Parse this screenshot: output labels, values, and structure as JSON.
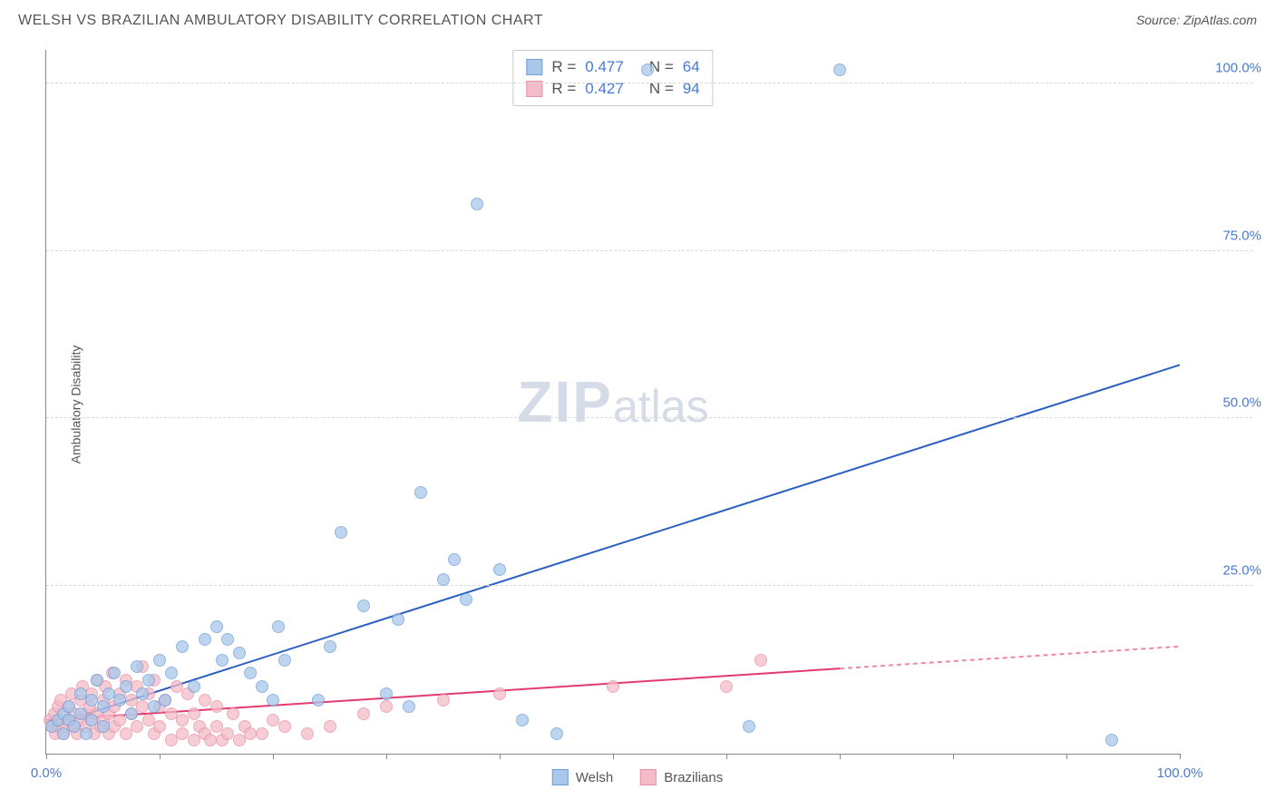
{
  "title": "WELSH VS BRAZILIAN AMBULATORY DISABILITY CORRELATION CHART",
  "source": "Source: ZipAtlas.com",
  "ylabel": "Ambulatory Disability",
  "watermark_main": "ZIP",
  "watermark_sub": "atlas",
  "chart": {
    "type": "scatter",
    "xlim": [
      0,
      100
    ],
    "ylim": [
      0,
      105
    ],
    "ytick_values": [
      25,
      50,
      75,
      100
    ],
    "ytick_labels": [
      "25.0%",
      "50.0%",
      "75.0%",
      "100.0%"
    ],
    "xtick_values": [
      0,
      10,
      20,
      30,
      40,
      50,
      60,
      70,
      80,
      90,
      100
    ],
    "xtick_labels_shown": {
      "0": "0.0%",
      "100": "100.0%"
    },
    "background_color": "#ffffff",
    "grid_color": "#d8d8d8",
    "axis_color": "#888888",
    "marker_radius": 7,
    "marker_border_width": 1,
    "series": [
      {
        "name": "Welsh",
        "fill_color": "#a9c7ea",
        "border_color": "#6f9fd8",
        "fill_opacity": 0.75,
        "R": "0.477",
        "N": "64",
        "trend": {
          "x1": 0,
          "y1": 4,
          "x2": 100,
          "y2": 58,
          "color": "#2b5fc1",
          "width": 2,
          "solid_until_x": 100
        },
        "points": [
          [
            0.5,
            4
          ],
          [
            1,
            5
          ],
          [
            1.5,
            3
          ],
          [
            1.5,
            6
          ],
          [
            2,
            5
          ],
          [
            2,
            7
          ],
          [
            2.5,
            4
          ],
          [
            3,
            6
          ],
          [
            3,
            9
          ],
          [
            3.5,
            3
          ],
          [
            4,
            8
          ],
          [
            4,
            5
          ],
          [
            4.5,
            11
          ],
          [
            5,
            7
          ],
          [
            5,
            4
          ],
          [
            5.5,
            9
          ],
          [
            6,
            12
          ],
          [
            6.5,
            8
          ],
          [
            7,
            10
          ],
          [
            7.5,
            6
          ],
          [
            8,
            13
          ],
          [
            8.5,
            9
          ],
          [
            9,
            11
          ],
          [
            9.5,
            7
          ],
          [
            10,
            14
          ],
          [
            10.5,
            8
          ],
          [
            11,
            12
          ],
          [
            12,
            16
          ],
          [
            13,
            10
          ],
          [
            14,
            17
          ],
          [
            15,
            19
          ],
          [
            15.5,
            14
          ],
          [
            16,
            17
          ],
          [
            17,
            15
          ],
          [
            18,
            12
          ],
          [
            19,
            10
          ],
          [
            20,
            8
          ],
          [
            20.5,
            19
          ],
          [
            21,
            14
          ],
          [
            24,
            8
          ],
          [
            25,
            16
          ],
          [
            26,
            33
          ],
          [
            28,
            22
          ],
          [
            30,
            9
          ],
          [
            31,
            20
          ],
          [
            32,
            7
          ],
          [
            33,
            39
          ],
          [
            35,
            26
          ],
          [
            36,
            29
          ],
          [
            37,
            23
          ],
          [
            38,
            82
          ],
          [
            40,
            27.5
          ],
          [
            42,
            5
          ],
          [
            45,
            3
          ],
          [
            53,
            102
          ],
          [
            62,
            4
          ],
          [
            70,
            102
          ],
          [
            94,
            2
          ]
        ]
      },
      {
        "name": "Brazilians",
        "fill_color": "#f4bcc8",
        "border_color": "#e98fa6",
        "fill_opacity": 0.75,
        "R": "0.427",
        "N": "94",
        "trend": {
          "x1": 0,
          "y1": 5,
          "x2": 100,
          "y2": 16,
          "color": "#e23a6e",
          "width": 2,
          "solid_until_x": 70
        },
        "points": [
          [
            0.3,
            5
          ],
          [
            0.5,
            4
          ],
          [
            0.7,
            6
          ],
          [
            0.8,
            3
          ],
          [
            1,
            7
          ],
          [
            1,
            4
          ],
          [
            1.2,
            5
          ],
          [
            1.3,
            8
          ],
          [
            1.5,
            3
          ],
          [
            1.5,
            6
          ],
          [
            1.7,
            4
          ],
          [
            2,
            7
          ],
          [
            2,
            5
          ],
          [
            2.2,
            9
          ],
          [
            2.4,
            4
          ],
          [
            2.5,
            6
          ],
          [
            2.7,
            3
          ],
          [
            3,
            8
          ],
          [
            3,
            5
          ],
          [
            3.2,
            10
          ],
          [
            3.5,
            6
          ],
          [
            3.5,
            4
          ],
          [
            3.8,
            7
          ],
          [
            4,
            9
          ],
          [
            4,
            5
          ],
          [
            4.2,
            3
          ],
          [
            4.5,
            11
          ],
          [
            4.5,
            6
          ],
          [
            4.8,
            4
          ],
          [
            5,
            8
          ],
          [
            5,
            5
          ],
          [
            5.2,
            10
          ],
          [
            5.5,
            6
          ],
          [
            5.5,
            3
          ],
          [
            5.8,
            12
          ],
          [
            6,
            7
          ],
          [
            6,
            4
          ],
          [
            6.5,
            9
          ],
          [
            6.5,
            5
          ],
          [
            7,
            11
          ],
          [
            7,
            3
          ],
          [
            7.5,
            8
          ],
          [
            7.5,
            6
          ],
          [
            8,
            10
          ],
          [
            8,
            4
          ],
          [
            8.5,
            7
          ],
          [
            8.5,
            13
          ],
          [
            9,
            5
          ],
          [
            9,
            9
          ],
          [
            9.5,
            3
          ],
          [
            9.5,
            11
          ],
          [
            10,
            7
          ],
          [
            10,
            4
          ],
          [
            10.5,
            8
          ],
          [
            11,
            6
          ],
          [
            11,
            2
          ],
          [
            11.5,
            10
          ],
          [
            12,
            5
          ],
          [
            12,
            3
          ],
          [
            12.5,
            9
          ],
          [
            13,
            6
          ],
          [
            13,
            2
          ],
          [
            13.5,
            4
          ],
          [
            14,
            8
          ],
          [
            14,
            3
          ],
          [
            14.5,
            2
          ],
          [
            15,
            7
          ],
          [
            15,
            4
          ],
          [
            15.5,
            2
          ],
          [
            16,
            3
          ],
          [
            16.5,
            6
          ],
          [
            17,
            2
          ],
          [
            17.5,
            4
          ],
          [
            18,
            3
          ],
          [
            19,
            3
          ],
          [
            20,
            5
          ],
          [
            21,
            4
          ],
          [
            23,
            3
          ],
          [
            25,
            4
          ],
          [
            28,
            6
          ],
          [
            30,
            7
          ],
          [
            35,
            8
          ],
          [
            40,
            9
          ],
          [
            50,
            10
          ],
          [
            60,
            10
          ],
          [
            63,
            14
          ]
        ]
      }
    ]
  },
  "legend": {
    "items": [
      {
        "label": "Welsh",
        "fill": "#a9c7ea",
        "border": "#6f9fd8"
      },
      {
        "label": "Brazilians",
        "fill": "#f4bcc8",
        "border": "#e98fa6"
      }
    ]
  },
  "stats_box": {
    "R_label": "R =",
    "N_label": "N ="
  }
}
